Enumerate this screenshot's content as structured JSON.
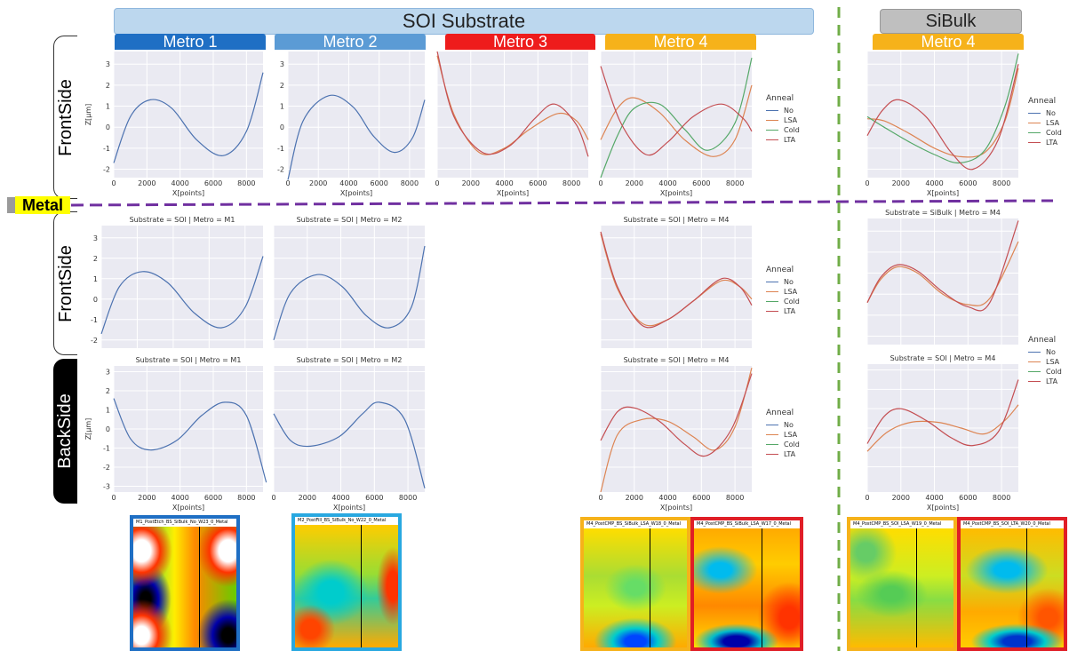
{
  "banners": {
    "soi": "SOI Substrate",
    "sibulk": "SiBulk",
    "metal": "Metal"
  },
  "metro_tabs": [
    {
      "label": "Metro 1",
      "color": "#1f6fc4"
    },
    {
      "label": "Metro 2",
      "color": "#5b9bd5"
    },
    {
      "label": "Metro 3",
      "color": "#ee1c1c"
    },
    {
      "label": "Metro 4",
      "color": "#f6b21a"
    },
    {
      "label": "Metro 4",
      "color": "#f6b21a"
    }
  ],
  "side_tabs": [
    "FrontSide",
    "FrontSide",
    "BackSide"
  ],
  "legend": {
    "title": "Anneal",
    "items": [
      {
        "label": "No",
        "color": "#4c72b0"
      },
      {
        "label": "LSA",
        "color": "#dd8452"
      },
      {
        "label": "Cold",
        "color": "#55a868"
      },
      {
        "label": "LTA",
        "color": "#c44e52"
      }
    ]
  },
  "axis_text": {
    "ylabel": "Z[µm]",
    "xlabel": "X[points]"
  },
  "panel_titles": {
    "soi_m1": "Substrate = SOI | Metro = M1",
    "soi_m2": "Substrate = SOI | Metro = M2",
    "soi_m4": "Substrate = SOI | Metro = M4",
    "sibulk_m4": "Substrate = SiBulk | Metro = M4"
  },
  "chart_data": [
    {
      "id": "r1-m1",
      "type": "line",
      "xlabel": "X[points]",
      "ylabel": "Z[µm]",
      "xlim": [
        0,
        9000
      ],
      "ylim": [
        -2.4,
        3.6
      ],
      "x_ticks": [
        0,
        2000,
        4000,
        6000,
        8000
      ],
      "y_ticks": [
        -2,
        -1,
        0,
        1,
        2,
        3
      ],
      "series": [
        {
          "name": "No",
          "color": "#4c72b0",
          "x": [
            0,
            1000,
            2200,
            3500,
            5000,
            6600,
            8000,
            9000
          ],
          "y": [
            -1.7,
            0.5,
            1.3,
            0.9,
            -0.6,
            -1.35,
            -0.2,
            2.6
          ]
        }
      ]
    },
    {
      "id": "r1-m2",
      "type": "line",
      "xlabel": "X[points]",
      "xlim": [
        0,
        9000
      ],
      "ylim": [
        -2.4,
        3.6
      ],
      "x_ticks": [
        0,
        2000,
        4000,
        6000,
        8000
      ],
      "y_ticks": [
        -2,
        -1,
        0,
        1,
        2,
        3
      ],
      "series": [
        {
          "name": "No",
          "color": "#4c72b0",
          "x": [
            0,
            1000,
            2700,
            4300,
            5600,
            7000,
            8200,
            9000
          ],
          "y": [
            -2.5,
            0.3,
            1.5,
            0.95,
            -0.4,
            -1.2,
            -0.5,
            1.3
          ]
        }
      ]
    },
    {
      "id": "r1-m3",
      "type": "line",
      "xlabel": "X[points]",
      "xlim": [
        0,
        9000
      ],
      "ylim": [
        -2.4,
        3.6
      ],
      "x_ticks": [
        0,
        2000,
        4000,
        6000,
        8000
      ],
      "series": [
        {
          "name": "LSA",
          "color": "#dd8452",
          "x": [
            0,
            1000,
            2500,
            4000,
            5500,
            7200,
            8300,
            9000
          ],
          "y": [
            3.4,
            0.6,
            -1.2,
            -1.0,
            -0.1,
            0.65,
            0.3,
            -0.6
          ]
        },
        {
          "name": "LTA",
          "color": "#c44e52",
          "x": [
            0,
            1000,
            2700,
            4300,
            5800,
            7000,
            8300,
            9000
          ],
          "y": [
            3.6,
            0.5,
            -1.2,
            -0.9,
            0.4,
            1.1,
            0.1,
            -1.4
          ]
        }
      ]
    },
    {
      "id": "r1-m4",
      "type": "line",
      "xlabel": "X[points]",
      "xlim": [
        0,
        9000
      ],
      "ylim": [
        -2.4,
        3.6
      ],
      "x_ticks": [
        0,
        2000,
        4000,
        6000,
        8000
      ],
      "series": [
        {
          "name": "LSA",
          "color": "#dd8452",
          "x": [
            0,
            1000,
            2000,
            3500,
            5000,
            6700,
            8000,
            9000
          ],
          "y": [
            -0.6,
            0.9,
            1.4,
            0.7,
            -0.6,
            -1.4,
            -0.6,
            2.0
          ]
        },
        {
          "name": "Cold",
          "color": "#55a868",
          "x": [
            0,
            1000,
            2000,
            3500,
            5000,
            6400,
            8000,
            9000
          ],
          "y": [
            -2.4,
            -0.4,
            0.9,
            1.1,
            -0.1,
            -1.1,
            0.2,
            3.3
          ]
        },
        {
          "name": "LTA",
          "color": "#c44e52",
          "x": [
            0,
            1200,
            2700,
            4000,
            5500,
            7200,
            8500,
            9000
          ],
          "y": [
            2.9,
            0.2,
            -1.3,
            -0.7,
            0.5,
            1.1,
            0.4,
            -0.2
          ]
        }
      ]
    },
    {
      "id": "r1-sib",
      "type": "line",
      "xlabel": "X[points]",
      "xlim": [
        0,
        9000
      ],
      "ylim": [
        -2.4,
        3.6
      ],
      "x_ticks": [
        0,
        2000,
        4000,
        6000,
        8000
      ],
      "series": [
        {
          "name": "LSA",
          "color": "#dd8452",
          "x": [
            0,
            1000,
            2500,
            4000,
            5500,
            7000,
            8200,
            9000
          ],
          "y": [
            0.4,
            0.3,
            -0.3,
            -1.0,
            -1.4,
            -1.2,
            0.3,
            2.8
          ]
        },
        {
          "name": "Cold",
          "color": "#55a868",
          "x": [
            0,
            1000,
            2500,
            4000,
            5500,
            7000,
            8200,
            9000
          ],
          "y": [
            0.5,
            0.0,
            -0.7,
            -1.3,
            -1.7,
            -1.1,
            1.0,
            3.5
          ]
        },
        {
          "name": "LTA",
          "color": "#c44e52",
          "x": [
            0,
            900,
            1900,
            3500,
            5000,
            6300,
            7800,
            9000
          ],
          "y": [
            -0.4,
            0.8,
            1.3,
            0.5,
            -1.2,
            -2.0,
            -0.6,
            3.0
          ]
        }
      ]
    },
    {
      "id": "r2-m1",
      "type": "line",
      "title": "Substrate = SOI | Metro = M1",
      "xlim": [
        0,
        9000
      ],
      "ylim": [
        -2.4,
        3.6
      ],
      "y_ticks": [
        -2,
        -1,
        0,
        1,
        2,
        3
      ],
      "series": [
        {
          "name": "No",
          "color": "#4c72b0",
          "x": [
            0,
            1000,
            2300,
            3700,
            5200,
            6700,
            8000,
            9000
          ],
          "y": [
            -1.7,
            0.6,
            1.35,
            0.8,
            -0.7,
            -1.4,
            -0.4,
            2.1
          ]
        }
      ]
    },
    {
      "id": "r2-m2",
      "type": "line",
      "title": "Substrate = SOI | Metro = M2",
      "xlim": [
        0,
        9000
      ],
      "ylim": [
        -2.4,
        3.6
      ],
      "series": [
        {
          "name": "No",
          "color": "#4c72b0",
          "x": [
            0,
            1000,
            2600,
            4100,
            5500,
            6900,
            8200,
            9000
          ],
          "y": [
            -2.0,
            0.3,
            1.2,
            0.6,
            -0.8,
            -1.4,
            -0.4,
            2.6
          ]
        }
      ]
    },
    {
      "id": "r2-m4",
      "type": "line",
      "title": "Substrate = SOI | Metro = M4",
      "xlim": [
        0,
        9000
      ],
      "ylim": [
        -2.4,
        3.6
      ],
      "series": [
        {
          "name": "LSA",
          "color": "#dd8452",
          "x": [
            0,
            1000,
            2500,
            4000,
            5500,
            7200,
            8300,
            9000
          ],
          "y": [
            3.2,
            0.5,
            -1.2,
            -1.0,
            -0.1,
            0.9,
            0.6,
            0.0
          ]
        },
        {
          "name": "LTA",
          "color": "#c44e52",
          "x": [
            0,
            1000,
            2500,
            4000,
            5500,
            7200,
            8300,
            9000
          ],
          "y": [
            3.3,
            0.6,
            -1.3,
            -1.0,
            -0.1,
            1.0,
            0.6,
            -0.3
          ]
        }
      ]
    },
    {
      "id": "r2-sib",
      "type": "line",
      "title": "Substrate = SiBulk | Metro = M4",
      "xlim": [
        0,
        9000
      ],
      "ylim": [
        -2.4,
        3.6
      ],
      "series": [
        {
          "name": "LSA",
          "color": "#dd8452",
          "x": [
            0,
            800,
            1800,
            3000,
            4500,
            6000,
            7300,
            9000
          ],
          "y": [
            -0.4,
            0.7,
            1.3,
            1.0,
            0.0,
            -0.5,
            -0.2,
            2.5
          ]
        },
        {
          "name": "LTA",
          "color": "#c44e52",
          "x": [
            0,
            800,
            1800,
            3000,
            4500,
            6000,
            7300,
            9000
          ],
          "y": [
            -0.4,
            0.8,
            1.4,
            1.1,
            0.1,
            -0.6,
            -0.4,
            3.5
          ]
        }
      ]
    },
    {
      "id": "r3-m1",
      "type": "line",
      "title": "Substrate = SOI | Metro = M1",
      "xlabel": "X[points]",
      "ylabel": "Z[µm]",
      "xlim": [
        0,
        9000
      ],
      "ylim": [
        -3.3,
        3.3
      ],
      "x_ticks": [
        0,
        2000,
        4000,
        6000,
        8000
      ],
      "y_ticks": [
        -3,
        -2,
        -1,
        0,
        1,
        2,
        3
      ],
      "series": [
        {
          "name": "No",
          "color": "#4c72b0",
          "x": [
            0,
            1000,
            2200,
            3800,
            5300,
            6700,
            8000,
            9200
          ],
          "y": [
            1.6,
            -0.5,
            -1.1,
            -0.6,
            0.7,
            1.4,
            0.7,
            -2.8
          ]
        }
      ]
    },
    {
      "id": "r3-m2",
      "type": "line",
      "title": "Substrate = SOI | Metro = M2",
      "xlabel": "X[points]",
      "xlim": [
        0,
        9000
      ],
      "ylim": [
        -3.3,
        3.3
      ],
      "x_ticks": [
        0,
        2000,
        4000,
        6000,
        8000
      ],
      "series": [
        {
          "name": "No",
          "color": "#4c72b0",
          "x": [
            0,
            1000,
            2200,
            3900,
            5300,
            6300,
            7800,
            9000
          ],
          "y": [
            0.8,
            -0.6,
            -0.9,
            -0.4,
            0.8,
            1.4,
            0.5,
            -3.1
          ]
        }
      ]
    },
    {
      "id": "r3-m4",
      "type": "line",
      "title": "Substrate = SOI | Metro = M4",
      "xlabel": "X[points]",
      "xlim": [
        0,
        9000
      ],
      "ylim": [
        -3.3,
        3.3
      ],
      "x_ticks": [
        0,
        2000,
        4000,
        6000,
        8000
      ],
      "series": [
        {
          "name": "LSA",
          "color": "#dd8452",
          "x": [
            0,
            1000,
            2500,
            4000,
            5500,
            6800,
            8000,
            9000
          ],
          "y": [
            -3.3,
            -0.3,
            0.5,
            0.4,
            -0.4,
            -1.1,
            0.1,
            3.2
          ]
        },
        {
          "name": "LTA",
          "color": "#c44e52",
          "x": [
            0,
            1000,
            2000,
            3500,
            5000,
            6300,
            7800,
            9000
          ],
          "y": [
            -0.6,
            0.9,
            1.1,
            0.4,
            -0.8,
            -1.4,
            0.0,
            2.9
          ]
        }
      ]
    },
    {
      "id": "r3-sib",
      "type": "line",
      "title": "Substrate = SOI | Metro = M4",
      "xlabel": "X[points]",
      "xlim": [
        0,
        9000
      ],
      "ylim": [
        -3.3,
        3.3
      ],
      "x_ticks": [
        0,
        2000,
        4000,
        6000,
        8000
      ],
      "series": [
        {
          "name": "LSA",
          "color": "#dd8452",
          "x": [
            0,
            1200,
            2600,
            4200,
            5600,
            7000,
            8200,
            9000
          ],
          "y": [
            -1.2,
            -0.2,
            0.3,
            0.3,
            0.0,
            -0.3,
            0.4,
            1.2
          ]
        },
        {
          "name": "LTA",
          "color": "#c44e52",
          "x": [
            0,
            1000,
            2000,
            3500,
            5000,
            6300,
            7800,
            9000
          ],
          "y": [
            -0.8,
            0.6,
            1.0,
            0.4,
            -0.5,
            -0.9,
            -0.2,
            2.5
          ]
        }
      ]
    }
  ],
  "heatmaps": [
    {
      "caption": "M1_PostEtch_BS_SiBulk_No_W23_0_Metal",
      "frame": "#1f6fc4",
      "style": "a"
    },
    {
      "caption": "M2_PostFill_BS_SiBulk_No_W22_0_Metal",
      "frame": "#29a8e0",
      "style": "b"
    },
    {
      "caption": "M4_PostCMP_BS_SiBulk_LSA_W18_0_Metal",
      "frame": "#f6b21a",
      "style": "c"
    },
    {
      "caption": "M4_PostCMP_BS_SiBulk_LSA_W17_0_Metal",
      "frame": "#e01e26",
      "style": "d"
    },
    {
      "caption": "M4_PostCMP_BS_SOI_LSA_W19_0_Metal",
      "frame": "#f6b21a",
      "style": "e"
    },
    {
      "caption": "M4_PostCMP_BS_SOI_LTA_W20_0_Metal",
      "frame": "#e01e26",
      "style": "f"
    }
  ]
}
